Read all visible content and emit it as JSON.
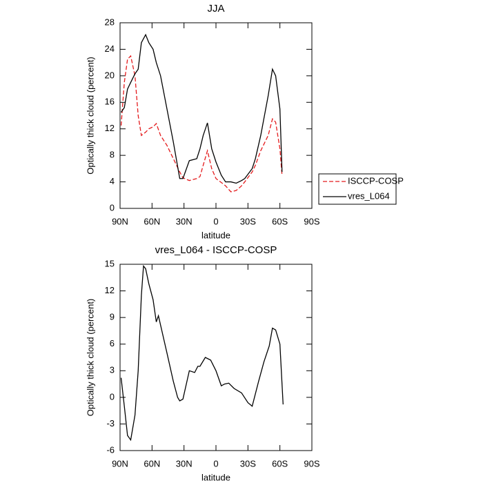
{
  "chart_data": [
    {
      "type": "line",
      "title": "JJA",
      "xlabel": "latitude",
      "ylabel": "Optically thick cloud (percent)",
      "x": [
        89,
        86,
        83,
        80,
        76,
        73,
        70,
        66,
        63,
        59,
        56,
        52,
        46,
        40,
        34,
        31,
        25,
        18,
        15,
        12,
        8,
        4,
        0,
        -5,
        -9,
        -14,
        -19,
        -24,
        -27,
        -34,
        -37,
        -42,
        -49,
        -53,
        -56,
        -60,
        -62
      ],
      "series": [
        {
          "name": "ISCCP-COSP",
          "color": "#e41a1c",
          "line_style": "dashed",
          "values": [
            12.5,
            19,
            22.5,
            23,
            20,
            14,
            11,
            11.5,
            12,
            12.3,
            12.8,
            11,
            9.5,
            7.5,
            5.5,
            4.6,
            4.2,
            4.5,
            4.8,
            6.5,
            8.7,
            6,
            4.5,
            3.9,
            3.4,
            2.5,
            2.7,
            3.4,
            4,
            5.5,
            6.5,
            8.7,
            11,
            13.5,
            13,
            9,
            5
          ]
        },
        {
          "name": "vres_L064",
          "color": "#000000",
          "line_style": "solid",
          "values": [
            14.5,
            15.2,
            18,
            19,
            20.3,
            21,
            25,
            26.2,
            25,
            24,
            22,
            20,
            15,
            10,
            4.5,
            4.5,
            7.2,
            7.5,
            9,
            11,
            12.9,
            9,
            7,
            5,
            4,
            4,
            3.8,
            4.2,
            4.5,
            6,
            7.5,
            11,
            17,
            21,
            20,
            15,
            5.5
          ]
        }
      ],
      "xlim": [
        90,
        -90
      ],
      "xticks": [
        {
          "value": 90,
          "label": "90N"
        },
        {
          "value": 60,
          "label": "60N"
        },
        {
          "value": 30,
          "label": "30N"
        },
        0,
        {
          "value": -30,
          "label": "30S"
        },
        {
          "value": -60,
          "label": "60S"
        },
        {
          "value": -90,
          "label": "90S"
        }
      ],
      "ylim": [
        0,
        28
      ],
      "yticks": [
        0,
        4,
        8,
        12,
        16,
        20,
        24,
        28
      ],
      "legend": "right"
    },
    {
      "type": "line",
      "title": "vres_L064 - ISCCP-COSP",
      "xlabel": "latitude",
      "ylabel": "Optically thick cloud (percent)",
      "x": [
        89,
        86,
        83,
        80,
        76,
        73,
        70,
        68,
        66,
        63,
        59,
        56,
        54,
        46,
        40,
        36,
        34,
        31,
        25,
        20,
        17,
        15,
        10,
        5,
        0,
        -5,
        -8,
        -12,
        -17,
        -24,
        -30,
        -34,
        -40,
        -45,
        -50,
        -53,
        -56,
        -60,
        -63
      ],
      "series": [
        {
          "color": "#000000",
          "line_style": "solid",
          "values": [
            2.2,
            -1,
            -4.3,
            -4.8,
            -2,
            3,
            11.5,
            14.8,
            14.5,
            12.8,
            11,
            8.5,
            9.2,
            5,
            1.8,
            0,
            -0.4,
            -0.2,
            3,
            2.8,
            3.5,
            3.5,
            4.5,
            4.2,
            3,
            1.3,
            1.5,
            1.6,
            1,
            0.5,
            -0.6,
            -1,
            1.8,
            4,
            5.8,
            7.8,
            7.6,
            6,
            -0.8
          ]
        }
      ],
      "xlim": [
        90,
        -90
      ],
      "xticks": [
        {
          "value": 90,
          "label": "90N"
        },
        {
          "value": 60,
          "label": "60N"
        },
        {
          "value": 30,
          "label": "30N"
        },
        0,
        {
          "value": -30,
          "label": "30S"
        },
        {
          "value": -60,
          "label": "60S"
        },
        {
          "value": -90,
          "label": "90S"
        }
      ],
      "ylim": [
        -6,
        15
      ],
      "yticks": [
        -6,
        -3,
        0,
        3,
        6,
        9,
        12,
        15
      ]
    }
  ]
}
